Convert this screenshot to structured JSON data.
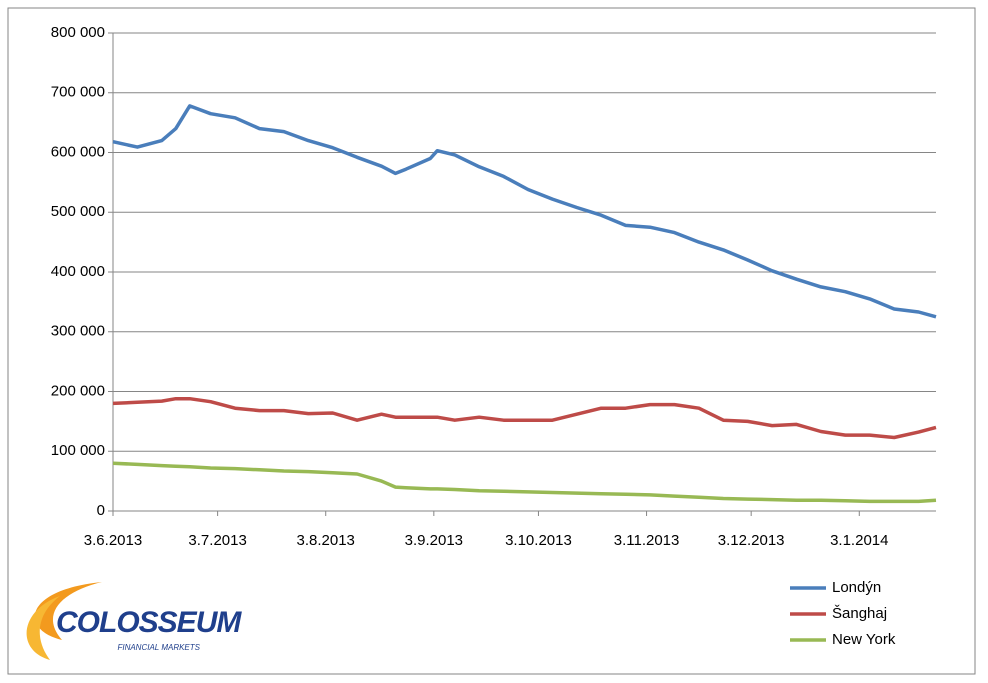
{
  "chart_data": {
    "type": "line",
    "x": [
      "3.6.2013",
      "10.6.2013",
      "17.6.2013",
      "21.6.2013",
      "25.6.2013",
      "1.7.2013",
      "8.7.2013",
      "15.7.2013",
      "22.7.2013",
      "29.7.2013",
      "5.8.2013",
      "12.8.2013",
      "19.8.2013",
      "23.8.2013",
      "26.8.2013",
      "2.9.2013",
      "4.9.2013",
      "9.9.2013",
      "16.9.2013",
      "23.9.2013",
      "30.9.2013",
      "7.10.2013",
      "14.10.2013",
      "21.10.2013",
      "28.10.2013",
      "4.11.2013",
      "11.11.2013",
      "18.11.2013",
      "25.11.2013",
      "2.12.2013",
      "9.12.2013",
      "16.12.2013",
      "23.12.2013",
      "30.12.2013",
      "6.1.2014",
      "13.1.2014",
      "20.1.2014",
      "25.1.2014"
    ],
    "series": [
      {
        "name": "Londýn",
        "color": "#4a7ebb",
        "values": [
          618000,
          609000,
          620000,
          640000,
          678000,
          665000,
          658000,
          640000,
          635000,
          620000,
          608000,
          592000,
          577000,
          565000,
          572000,
          590000,
          603000,
          596000,
          576000,
          560000,
          538000,
          522000,
          508000,
          495000,
          478000,
          475000,
          466000,
          450000,
          437000,
          420000,
          402000,
          388000,
          375000,
          367000,
          355000,
          338000,
          333000,
          325000
        ]
      },
      {
        "name": "Šanghaj",
        "color": "#be4b48",
        "values": [
          180000,
          182000,
          184000,
          188000,
          188000,
          183000,
          172000,
          168000,
          168000,
          163000,
          164000,
          152000,
          162000,
          157000,
          157000,
          157000,
          157000,
          152000,
          157000,
          152000,
          152000,
          152000,
          162000,
          172000,
          172000,
          178000,
          178000,
          172000,
          152000,
          150000,
          143000,
          145000,
          133000,
          127000,
          127000,
          123000,
          132000,
          140000
        ]
      },
      {
        "name": "New York",
        "color": "#98b954",
        "values": [
          80000,
          78000,
          76000,
          75000,
          74000,
          72000,
          71000,
          69000,
          67000,
          66000,
          64000,
          62000,
          50000,
          40000,
          39000,
          37000,
          37000,
          36000,
          34000,
          33000,
          32000,
          31000,
          30000,
          29000,
          28000,
          27000,
          25000,
          23000,
          21000,
          20000,
          19000,
          18000,
          18000,
          17000,
          16000,
          16000,
          16000,
          18000
        ]
      }
    ],
    "xlim": [
      "3.6.2013",
      "25.1.2014"
    ],
    "xticks": [
      "3.6.2013",
      "3.7.2013",
      "3.8.2013",
      "3.9.2013",
      "3.10.2013",
      "3.11.2013",
      "3.12.2013",
      "3.1.2014"
    ],
    "ylim": [
      0,
      800000
    ],
    "yticks": [
      0,
      {
        "value": 100000,
        "label": "100 000"
      },
      {
        "value": 200000,
        "label": "200 000"
      },
      {
        "value": 300000,
        "label": "300 000"
      },
      {
        "value": 400000,
        "label": "400 000"
      },
      {
        "value": 500000,
        "label": "500 000"
      },
      {
        "value": 600000,
        "label": "600 000"
      },
      {
        "value": 700000,
        "label": "700 000"
      },
      {
        "value": 800000,
        "label": "800 000"
      }
    ],
    "grid": true,
    "legend": "bottom-right"
  },
  "logo": {
    "name": "COLOSSEUM",
    "tagline": "FINANCIAL MARKETS"
  }
}
